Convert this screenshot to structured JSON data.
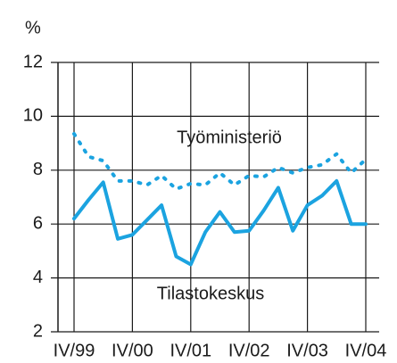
{
  "chart_data": {
    "type": "line",
    "y_label": "%",
    "categories": [
      "IV/99",
      null,
      null,
      null,
      "IV/00",
      null,
      null,
      null,
      "IV/01",
      null,
      null,
      null,
      "IV/02",
      null,
      null,
      null,
      "IV/03",
      null,
      null,
      null,
      "IV/04"
    ],
    "series": [
      {
        "name": "Työministeriö",
        "color": "#1ba3e0",
        "style": "dotted",
        "values": [
          9.35,
          8.5,
          8.35,
          7.6,
          7.6,
          7.45,
          7.8,
          7.3,
          7.5,
          7.45,
          7.9,
          7.45,
          7.8,
          7.75,
          8.1,
          7.9,
          8.1,
          8.2,
          8.6,
          7.9,
          8.4
        ]
      },
      {
        "name": "Tilastokeskus",
        "color": "#1ba3e0",
        "style": "solid",
        "values": [
          6.2,
          6.9,
          7.55,
          5.45,
          5.6,
          6.15,
          6.7,
          4.8,
          4.5,
          5.7,
          6.45,
          5.7,
          5.75,
          6.5,
          7.35,
          5.75,
          6.7,
          7.05,
          7.6,
          6.0,
          6.0
        ]
      }
    ],
    "ylim": [
      2,
      12
    ],
    "yticks": [
      2,
      4,
      6,
      8,
      10,
      12
    ],
    "grid": true
  }
}
